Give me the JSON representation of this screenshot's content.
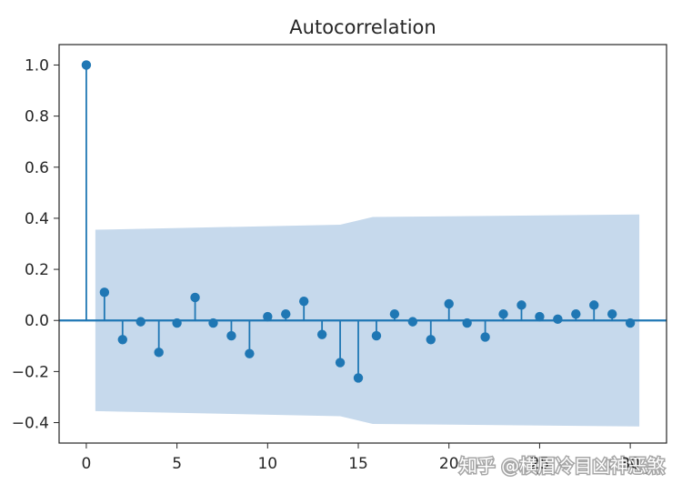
{
  "chart_data": {
    "type": "scatter",
    "title": "Autocorrelation",
    "xlabel": "",
    "ylabel": "",
    "xlim": [
      -1.5,
      32
    ],
    "ylim": [
      -0.48,
      1.08
    ],
    "xticks": [
      0,
      5,
      10,
      15,
      20,
      25,
      30
    ],
    "xtick_labels": [
      "0",
      "5",
      "10",
      "15",
      "20",
      "25",
      "30"
    ],
    "yticks": [
      1.0,
      0.8,
      0.6,
      0.4,
      0.2,
      0.0,
      -0.2,
      -0.4
    ],
    "ytick_labels": [
      "1.0",
      "0.8",
      "0.6",
      "0.4",
      "0.2",
      "0.0",
      "−0.2",
      "−0.4"
    ],
    "grid": false,
    "lags": [
      0,
      1,
      2,
      3,
      4,
      5,
      6,
      7,
      8,
      9,
      10,
      11,
      12,
      13,
      14,
      15,
      16,
      17,
      18,
      19,
      20,
      21,
      22,
      23,
      24,
      25,
      26,
      27,
      28,
      29,
      30
    ],
    "values": [
      1.0,
      0.11,
      -0.075,
      -0.005,
      -0.125,
      -0.01,
      0.09,
      -0.01,
      -0.06,
      -0.13,
      0.015,
      0.025,
      0.075,
      -0.055,
      -0.165,
      -0.225,
      -0.06,
      0.025,
      -0.005,
      -0.075,
      0.065,
      -0.01,
      -0.065,
      0.025,
      0.06,
      0.015,
      0.005,
      0.025,
      0.06,
      0.025,
      -0.01
    ],
    "confidence_band": {
      "lags": [
        0.5,
        14,
        15.8,
        30.5
      ],
      "upper": [
        0.355,
        0.375,
        0.405,
        0.415
      ]
    },
    "colors": {
      "stem": "#1f77b4",
      "band": "#c6d9ec",
      "axis": "#262626"
    }
  },
  "watermark": {
    "text": "知乎 @横眉冷目凶神恶煞"
  }
}
